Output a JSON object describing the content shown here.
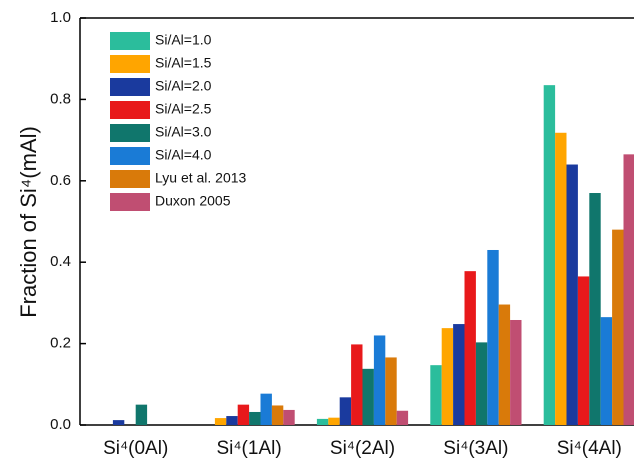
{
  "chart_data": {
    "type": "bar",
    "ylabel": "Fraction of Si⁴(mAl)",
    "categories": [
      "Si⁴(0Al)",
      "Si⁴(1Al)",
      "Si⁴(2Al)",
      "Si⁴(3Al)",
      "Si⁴(4Al)"
    ],
    "series": [
      {
        "name": "Si/Al=1.0",
        "color": "#2bbd9c",
        "values": [
          0,
          0,
          0.015,
          0.147,
          0.835
        ]
      },
      {
        "name": "Si/Al=1.5",
        "color": "#ffa500",
        "values": [
          0,
          0.017,
          0.018,
          0.238,
          0.718
        ]
      },
      {
        "name": "Si/Al=2.0",
        "color": "#1a3a9e",
        "values": [
          0.012,
          0.022,
          0.068,
          0.248,
          0.64
        ]
      },
      {
        "name": "Si/Al=2.5",
        "color": "#e8191b",
        "values": [
          0,
          0.05,
          0.198,
          0.378,
          0.365
        ]
      },
      {
        "name": "Si/Al=3.0",
        "color": "#10766c",
        "values": [
          0.05,
          0.032,
          0.138,
          0.203,
          0.57
        ]
      },
      {
        "name": "Si/Al=4.0",
        "color": "#1a7bd6",
        "values": [
          0,
          0.077,
          0.22,
          0.43,
          0.265
        ]
      },
      {
        "name": "Lyu et al. 2013",
        "color": "#d97a0a",
        "values": [
          0,
          0.048,
          0.166,
          0.296,
          0.48
        ]
      },
      {
        "name": "Duxon 2005",
        "color": "#c04e72",
        "values": [
          0,
          0.037,
          0.035,
          0.258,
          0.665
        ]
      }
    ],
    "ylim": [
      0,
      1
    ],
    "yticks": [
      {
        "value": 0,
        "label": "0.0"
      },
      0.2,
      0.4,
      0.6,
      0.8,
      {
        "value": 1,
        "label": "1.0"
      }
    ],
    "legend": "upper-left"
  }
}
